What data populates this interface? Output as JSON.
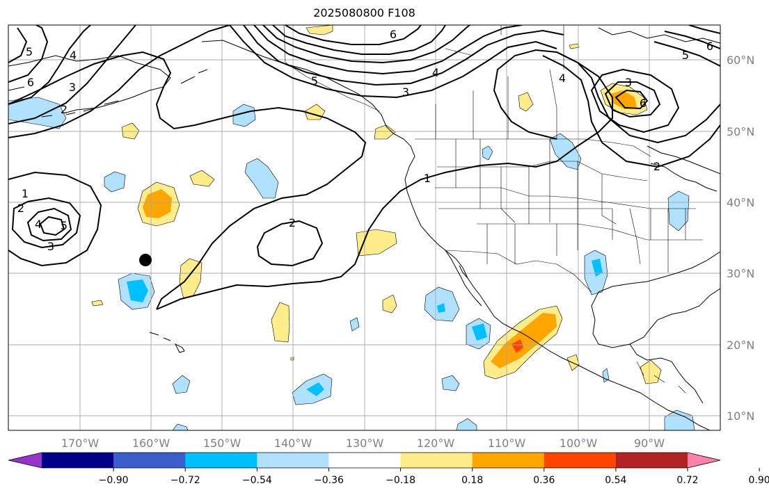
{
  "title": "2025080800 F108",
  "lat_labels": [
    "60°N",
    "50°N",
    "40°N",
    "30°N",
    "20°N",
    "10°N"
  ],
  "lon_labels": [
    "170°W",
    "160°W",
    "150°W",
    "140°W",
    "130°W",
    "120°W",
    "110°W",
    "100°W",
    "90°W"
  ],
  "colorbar": {
    "ticks": [
      "−0.90",
      "−0.72",
      "−0.54",
      "−0.36",
      "−0.18",
      "0.18",
      "0.36",
      "0.54",
      "0.72",
      "0.90"
    ],
    "colors": [
      "#9932cc",
      "#00008b",
      "#3a5fcd",
      "#00bfff",
      "#b0e2ff",
      "#ffffff",
      "#ffec8b",
      "#ffa500",
      "#ff4500",
      "#b22222",
      "#ff82ab"
    ]
  },
  "contour_labels": [
    "1",
    "2",
    "3",
    "4",
    "5",
    "6"
  ],
  "marker": "storm-position-dot"
}
